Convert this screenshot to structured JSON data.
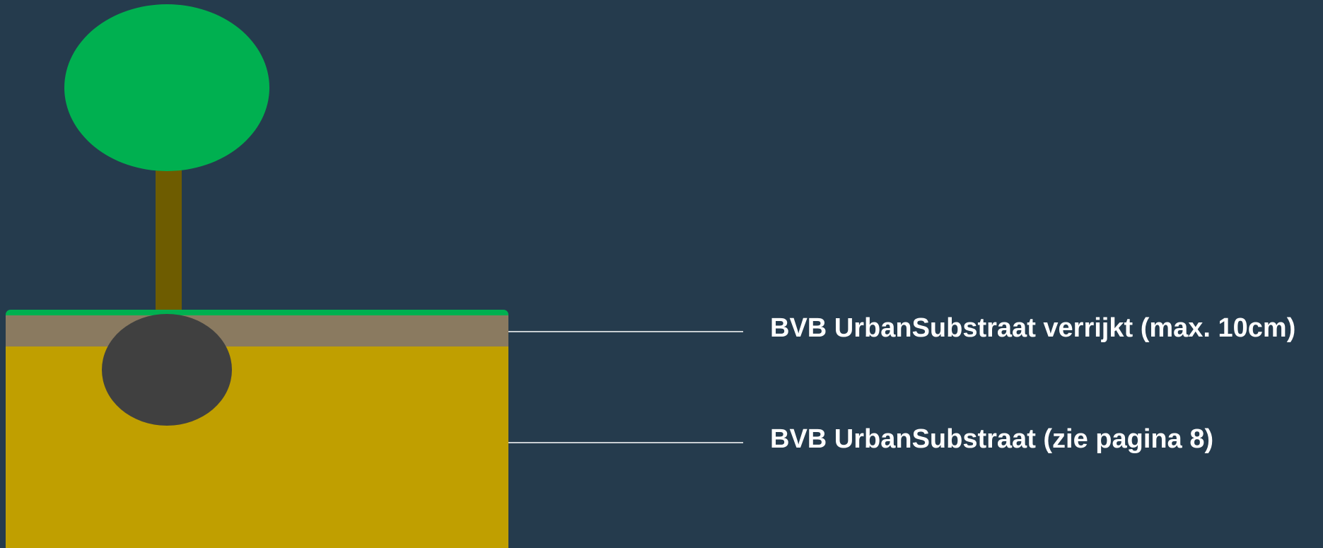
{
  "labels": [
    {
      "text": "BVB UrbanSubstraat verrijkt (max. 10cm)"
    },
    {
      "text": "BVB UrbanSubstraat (zie pagina 8)"
    }
  ]
}
